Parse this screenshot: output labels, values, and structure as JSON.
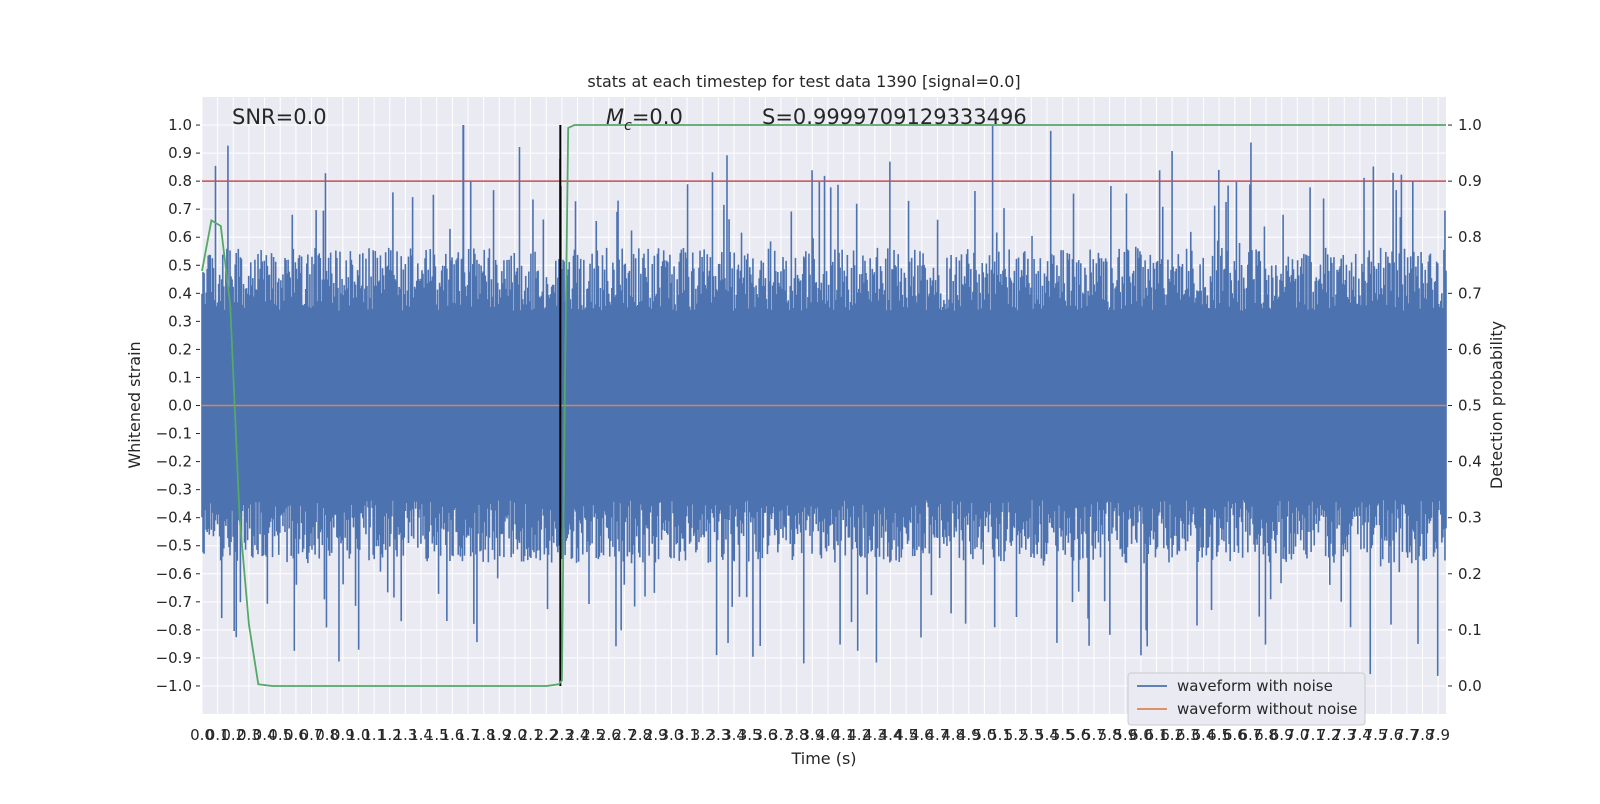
{
  "chart_data": {
    "type": "line",
    "title": "stats at each timestep for test data 1390 [signal=0.0]",
    "xlabel": "Time (s)",
    "ylabel": "Whitened strain",
    "y2label": "Detection probability",
    "xlim": [
      0.0,
      7.95
    ],
    "ylim": [
      -1.1,
      1.1
    ],
    "y2lim": [
      -0.05,
      1.05
    ],
    "x_ticks": [
      "0.0",
      "0.1",
      "0.2",
      "0.3",
      "0.4",
      "0.5",
      "0.6",
      "0.7",
      "0.8",
      "0.9",
      "1.0",
      "1.1",
      "1.2",
      "1.3",
      "1.4",
      "1.5",
      "1.6",
      "1.7",
      "1.8",
      "1.9",
      "2.0",
      "2.1",
      "2.2",
      "2.3",
      "2.4",
      "2.5",
      "2.6",
      "2.7",
      "2.8",
      "2.9",
      "3.0",
      "3.1",
      "3.2",
      "3.3",
      "3.4",
      "3.5",
      "3.6",
      "3.7",
      "3.8",
      "3.9",
      "4.0",
      "4.1",
      "4.2",
      "4.3",
      "4.4",
      "4.5",
      "4.6",
      "4.7",
      "4.8",
      "4.9",
      "5.0",
      "5.1",
      "5.2",
      "5.3",
      "5.4",
      "5.5",
      "5.6",
      "5.7",
      "5.8",
      "5.9",
      "6.0",
      "6.1",
      "6.2",
      "6.3",
      "6.4",
      "6.5",
      "6.6",
      "6.7",
      "6.8",
      "6.9",
      "7.0",
      "7.1",
      "7.2",
      "7.3",
      "7.4",
      "7.5",
      "7.6",
      "7.7",
      "7.8",
      "7.9"
    ],
    "y_ticks": [
      "1.0",
      "0.9",
      "0.8",
      "0.7",
      "0.6",
      "0.5",
      "0.4",
      "0.3",
      "0.2",
      "0.1",
      "0.0",
      "-0.1",
      "-0.2",
      "-0.3",
      "-0.4",
      "-0.5",
      "-0.6",
      "-0.7",
      "-0.8",
      "-0.9",
      "-1.0"
    ],
    "y2_ticks": [
      "1.0",
      "0.9",
      "0.8",
      "0.7",
      "0.6",
      "0.5",
      "0.4",
      "0.3",
      "0.2",
      "0.1",
      "0.0"
    ],
    "annotations": {
      "snr": "SNR=0.0",
      "mc_symbol": "M",
      "mc_sub": "c",
      "mc_value": "=0.0",
      "score": "S=0.9999709129333496"
    },
    "series": [
      {
        "name": "waveform with noise",
        "color": "#4c72b0",
        "envelope": {
          "typical_abs": 0.45,
          "max": 1.0,
          "min": -1.0,
          "peak_x": 1.67
        }
      },
      {
        "name": "waveform without noise",
        "color": "#dd8452",
        "values_constant": 0.0
      }
    ],
    "detection_probability": {
      "color": "#55a868",
      "axis": "y2",
      "points": [
        [
          0.0,
          0.74
        ],
        [
          0.06,
          0.83
        ],
        [
          0.12,
          0.82
        ],
        [
          0.18,
          0.68
        ],
        [
          0.24,
          0.3
        ],
        [
          0.3,
          0.11
        ],
        [
          0.36,
          0.003
        ],
        [
          0.45,
          0.0
        ],
        [
          1.5,
          0.0
        ],
        [
          1.9,
          0.0
        ],
        [
          2.2,
          0.0
        ],
        [
          2.28,
          0.003
        ],
        [
          2.3,
          0.01
        ],
        [
          2.32,
          0.55
        ],
        [
          2.34,
          0.995
        ],
        [
          2.38,
          1.0
        ],
        [
          2.45,
          1.0
        ],
        [
          7.95,
          1.0
        ]
      ]
    },
    "threshold_line": {
      "value": 0.8,
      "axis": "y",
      "color": "#c44e52"
    },
    "event_marker": {
      "x": 2.29,
      "color": "#000000"
    },
    "legend_position": "lower right",
    "grid": true
  }
}
